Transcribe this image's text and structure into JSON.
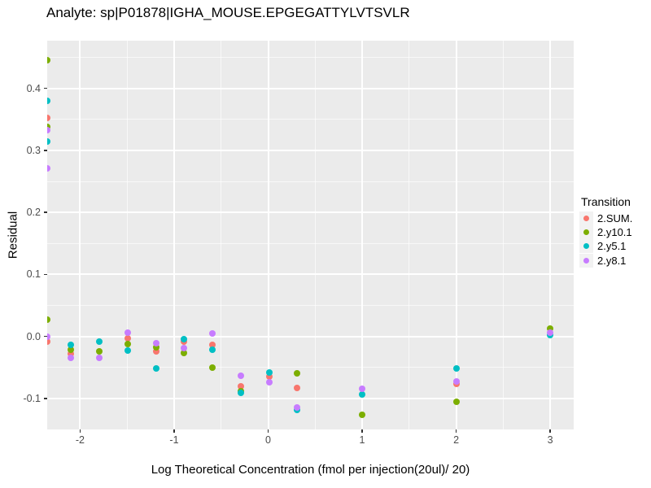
{
  "title": "Analyte: sp|P01878|IGHA_MOUSE.EPGEGATTYLVTSVLR",
  "chart_data": {
    "type": "scatter",
    "title": "Analyte: sp|P01878|IGHA_MOUSE.EPGEGATTYLVTSVLR",
    "xlabel": "Log Theoretical Concentration (fmol per injection(20ul)/ 20)",
    "ylabel": "Residual",
    "panel_bg": "#EBEBEB",
    "grid": true,
    "xlim": [
      -2.35,
      3.25
    ],
    "ylim": [
      -0.15,
      0.477
    ],
    "x_ticks": [
      {
        "v": -2,
        "label": "-2"
      },
      {
        "v": -1,
        "label": "-1"
      },
      {
        "v": 0,
        "label": "0"
      },
      {
        "v": 1,
        "label": "1"
      },
      {
        "v": 2,
        "label": "2"
      },
      {
        "v": 3,
        "label": "3"
      }
    ],
    "y_ticks": [
      {
        "v": -0.1,
        "label": "-0.1"
      },
      {
        "v": 0.0,
        "label": "0.0"
      },
      {
        "v": 0.1,
        "label": "0.1"
      },
      {
        "v": 0.2,
        "label": "0.2"
      },
      {
        "v": 0.3,
        "label": "0.3"
      },
      {
        "v": 0.4,
        "label": "0.4"
      }
    ],
    "x_minor": [
      -1.5,
      -0.5,
      0.5,
      1.5,
      2.5
    ],
    "y_minor": [
      -0.15,
      -0.05,
      0.05,
      0.15,
      0.25,
      0.35,
      0.45
    ],
    "legend": {
      "title": "Transition",
      "position": "right",
      "key_bg": "#F2F2F2",
      "entries": [
        {
          "label": "2.SUM.",
          "color": "#F8766D"
        },
        {
          "label": "2.y10.1",
          "color": "#7CAE00"
        },
        {
          "label": "2.y5.1",
          "color": "#00BFC4"
        },
        {
          "label": "2.y8.1",
          "color": "#C77CFF"
        }
      ]
    },
    "series": [
      {
        "name": "2.SUM.",
        "color": "#F8766D",
        "points": [
          [
            -2.35,
            0.353
          ],
          [
            -2.35,
            -0.008
          ],
          [
            -2.097,
            -0.028
          ],
          [
            -1.495,
            -0.003
          ],
          [
            -1.194,
            -0.024
          ],
          [
            -0.893,
            -0.008
          ],
          [
            -0.592,
            -0.014
          ],
          [
            -0.291,
            -0.081
          ],
          [
            0.01,
            -0.065
          ],
          [
            0.311,
            -0.083
          ],
          [
            2,
            -0.077
          ]
        ]
      },
      {
        "name": "2.y10.1",
        "color": "#7CAE00",
        "points": [
          [
            -2.35,
            0.446
          ],
          [
            -2.35,
            0.338
          ],
          [
            -2.35,
            0.027
          ],
          [
            -2.097,
            -0.021
          ],
          [
            -1.796,
            -0.024
          ],
          [
            -1.495,
            -0.012
          ],
          [
            -1.194,
            -0.017
          ],
          [
            -0.893,
            -0.027
          ],
          [
            -0.592,
            -0.05
          ],
          [
            -0.291,
            -0.088
          ],
          [
            0.311,
            -0.06
          ],
          [
            1,
            -0.126
          ],
          [
            2,
            -0.105
          ],
          [
            3,
            0.013
          ]
        ]
      },
      {
        "name": "2.y5.1",
        "color": "#00BFC4",
        "points": [
          [
            -2.35,
            0.38
          ],
          [
            -2.35,
            0.314
          ],
          [
            -2.097,
            -0.013
          ],
          [
            -1.796,
            -0.008
          ],
          [
            -1.495,
            -0.023
          ],
          [
            -1.194,
            -0.051
          ],
          [
            -0.893,
            -0.004
          ],
          [
            -0.592,
            -0.022
          ],
          [
            -0.291,
            -0.091
          ],
          [
            0.01,
            -0.058
          ],
          [
            0.311,
            -0.119
          ],
          [
            1,
            -0.094
          ],
          [
            2,
            -0.051
          ],
          [
            3,
            0.002
          ]
        ]
      },
      {
        "name": "2.y8.1",
        "color": "#C77CFF",
        "points": [
          [
            -2.35,
            0.333
          ],
          [
            -2.35,
            0.271
          ],
          [
            -2.35,
            -0.001
          ],
          [
            -2.097,
            -0.034
          ],
          [
            -1.796,
            -0.035
          ],
          [
            -1.495,
            0.006
          ],
          [
            -1.194,
            -0.011
          ],
          [
            -0.893,
            -0.019
          ],
          [
            -0.592,
            0.005
          ],
          [
            -0.291,
            -0.063
          ],
          [
            0.01,
            -0.074
          ],
          [
            0.311,
            -0.114
          ],
          [
            1,
            -0.085
          ],
          [
            2,
            -0.072
          ],
          [
            3,
            0.006
          ]
        ]
      }
    ]
  }
}
